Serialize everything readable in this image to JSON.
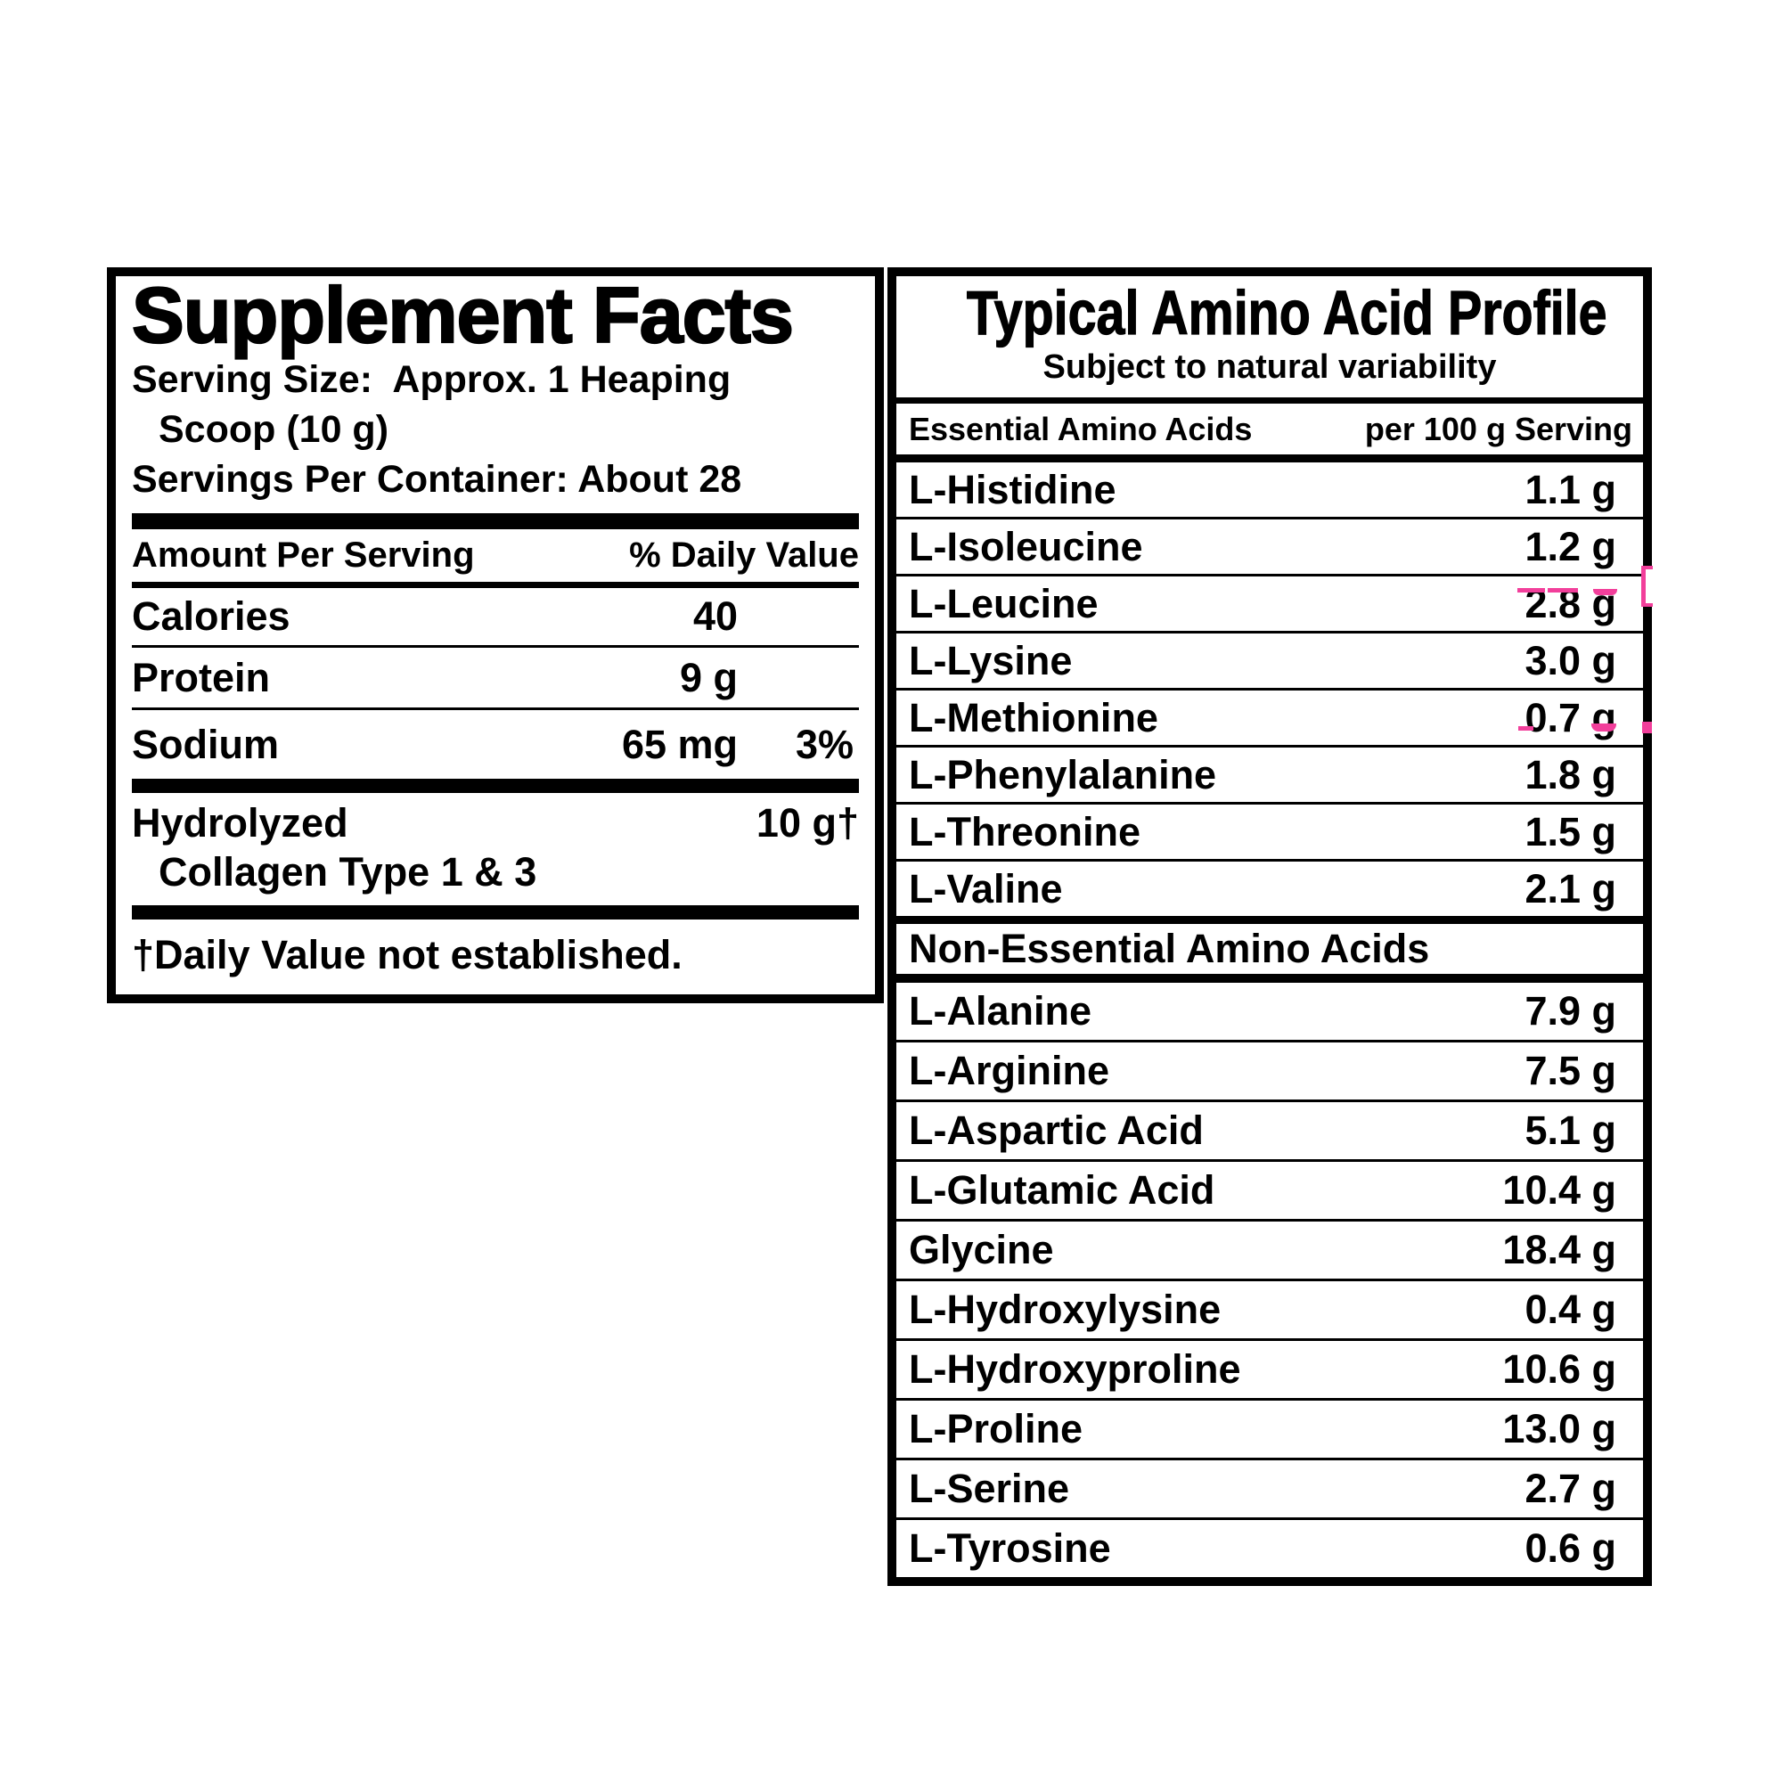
{
  "colors": {
    "ink": "#000000",
    "paper": "#ffffff",
    "annotation_pink": "#f23f9b"
  },
  "supplement_facts": {
    "title": "Supplement Facts",
    "serving_lines": {
      "line1": "Serving Size:  Approx. 1 Heaping",
      "line2": "Scoop (10 g)",
      "line3": "Servings Per Container: About 28"
    },
    "column_header": {
      "left": "Amount Per Serving",
      "right": "% Daily Value"
    },
    "rows": [
      {
        "label": "Calories",
        "amount": "40",
        "daily_value": ""
      },
      {
        "label": "Protein",
        "amount": "9 g",
        "daily_value": ""
      },
      {
        "label": "Sodium",
        "amount": "65 mg",
        "daily_value": "3%"
      }
    ],
    "collagen_row": {
      "label": "Hydrolyzed",
      "label_line2": "Collagen Type 1 & 3",
      "amount": "10 g",
      "daily_value": "†"
    },
    "footnote": "†Daily Value not established."
  },
  "amino_acid_profile": {
    "title": "Typical Amino Acid Profile",
    "subtitle": "Subject to natural variability",
    "column_header": {
      "left": "Essential Amino Acids",
      "right": "per 100 g Serving"
    },
    "essential_rows": [
      {
        "name": "L-Histidine",
        "value": "1.1 g"
      },
      {
        "name": "L-Isoleucine",
        "value": "1.2 g"
      },
      {
        "name": "L-Leucine",
        "value": "2.8 g"
      },
      {
        "name": "L-Lysine",
        "value": "3.0 g"
      },
      {
        "name": "L-Methionine",
        "value": "0.7 g"
      },
      {
        "name": "L-Phenylalanine",
        "value": "1.8 g"
      },
      {
        "name": "L-Threonine",
        "value": "1.5 g"
      },
      {
        "name": "L-Valine",
        "value": "2.1 g"
      }
    ],
    "non_essential_header": "Non-Essential Amino Acids",
    "non_essential_rows": [
      {
        "name": "L-Alanine",
        "value": "7.9 g"
      },
      {
        "name": "L-Arginine",
        "value": "7.5 g"
      },
      {
        "name": "L-Aspartic Acid",
        "value": "5.1 g"
      },
      {
        "name": "L-Glutamic Acid",
        "value": "10.4 g"
      },
      {
        "name": "Glycine",
        "value": "18.4 g"
      },
      {
        "name": "L-Hydroxylysine",
        "value": "0.4 g"
      },
      {
        "name": "L-Hydroxyproline",
        "value": "10.6 g"
      },
      {
        "name": "L-Proline",
        "value": "13.0 g"
      },
      {
        "name": "L-Serine",
        "value": "2.7 g"
      },
      {
        "name": "L-Tyrosine",
        "value": "0.6 g"
      }
    ]
  }
}
